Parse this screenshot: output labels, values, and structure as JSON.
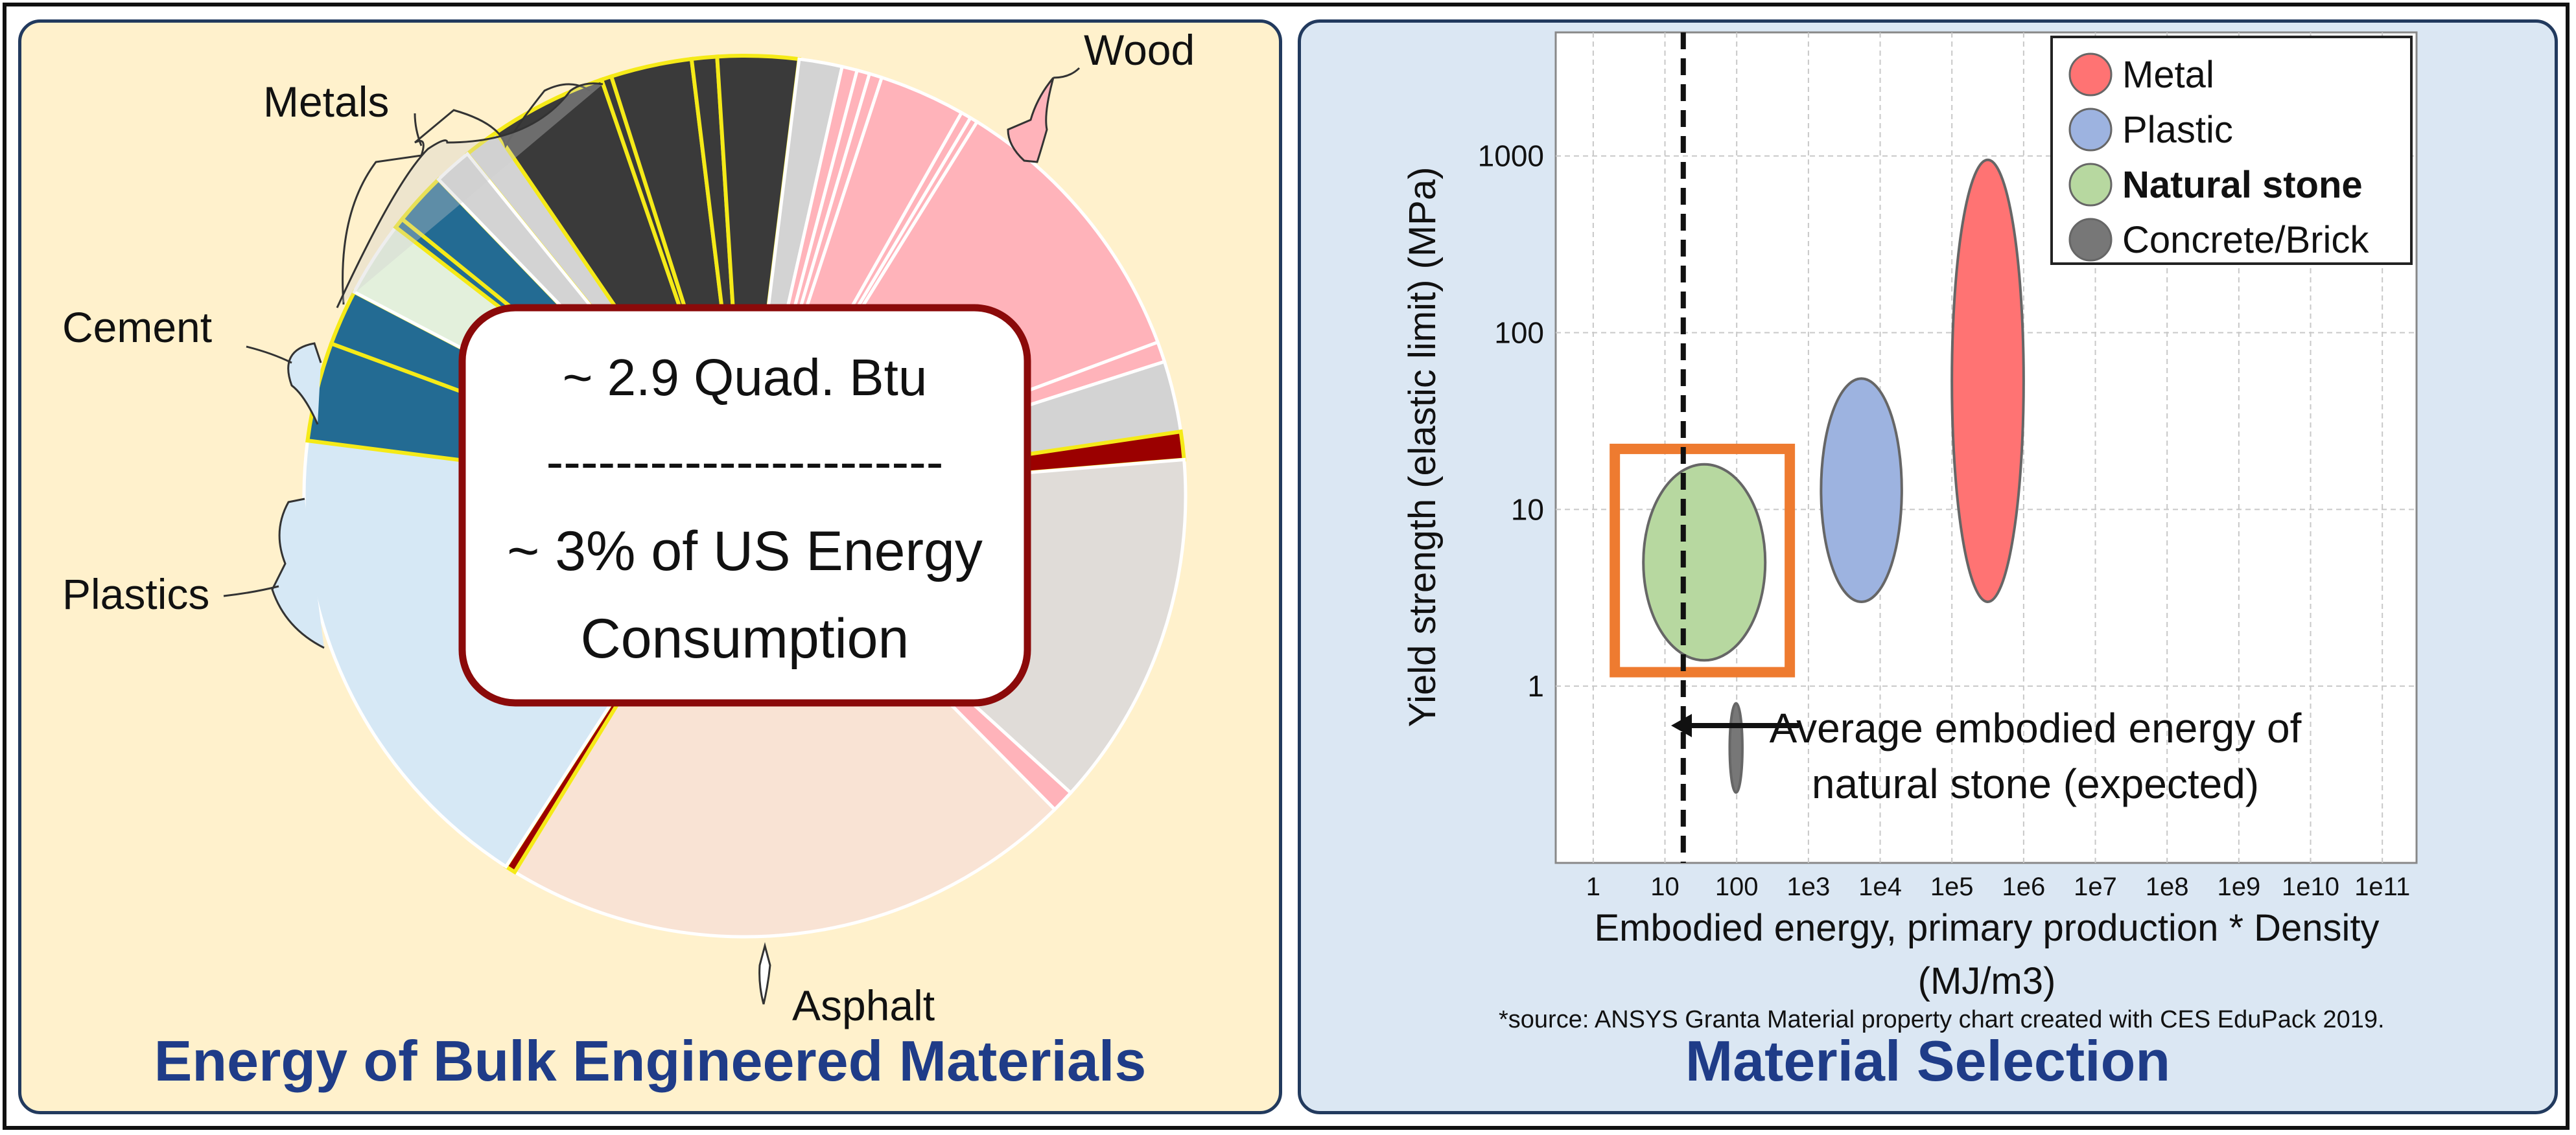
{
  "left_panel": {
    "title": "Energy of Bulk Engineered Materials",
    "callout": {
      "line1": "~ 2.9 Quad. Btu",
      "divider": "-----------------------",
      "line2": "~ 3% of US Energy",
      "line3": "Consumption"
    },
    "labels": {
      "metals": "Metals",
      "wood": "Wood",
      "cement": "Cement",
      "plastics": "Plastics",
      "asphalt": "Asphalt"
    }
  },
  "right_panel": {
    "title": "Material Selection",
    "source": "*source: ANSYS Granta Material property chart created with CES EduPack 2019.",
    "annotation_line1": "Average embodied energy of",
    "annotation_line2": "natural stone (expected)"
  },
  "chart_data": [
    {
      "type": "pie",
      "title": "Energy of Bulk Engineered Materials",
      "highlighted_groups": [
        "Metals",
        "Wood",
        "Cement",
        "Plastics",
        "Asphalt"
      ],
      "slices": [
        {
          "group": "Metals",
          "value": 1.4,
          "color": "#d3d3d3"
        },
        {
          "group": "Metals",
          "value": 4.6,
          "color": "#3a3a3a"
        },
        {
          "group": "Metals",
          "value": 0.4,
          "color": "#3a3a3a"
        },
        {
          "group": "Metals",
          "value": 3.2,
          "color": "#3a3a3a"
        },
        {
          "group": "Metals",
          "value": 1.0,
          "color": "#3a3a3a"
        },
        {
          "group": "Metals",
          "value": 3.2,
          "color": "#3a3a3a"
        },
        {
          "group": "",
          "value": 1.7,
          "color": "#d3d3d3"
        },
        {
          "group": "",
          "value": 0.6,
          "color": "#ffb3ba"
        },
        {
          "group": "",
          "value": 0.5,
          "color": "#ffb3ba"
        },
        {
          "group": "",
          "value": 0.5,
          "color": "#ffb3ba"
        },
        {
          "group": "",
          "value": 3.4,
          "color": "#ffb3ba"
        },
        {
          "group": "",
          "value": 0.4,
          "color": "#ffb3ba"
        },
        {
          "group": "",
          "value": 0.3,
          "color": "#ffb3ba"
        },
        {
          "group": "",
          "value": 11.3,
          "color": "#ffb3ba"
        },
        {
          "group": "",
          "value": 0.8,
          "color": "#ffb3ba"
        },
        {
          "group": "",
          "value": 2.8,
          "color": "#d3d3d3"
        },
        {
          "group": "Wood",
          "value": 1.1,
          "color": "#9b0000"
        },
        {
          "group": "",
          "value": 14.1,
          "color": "#e0dcd8"
        },
        {
          "group": "",
          "value": 0.9,
          "color": "#ffb3ba"
        },
        {
          "group": "",
          "value": 22.8,
          "color": "#f9e3d4"
        },
        {
          "group": "Asphalt",
          "value": 0.4,
          "color": "#9b0000"
        },
        {
          "group": "",
          "value": 19.3,
          "color": "#d6e8f5"
        },
        {
          "group": "Plastics",
          "value": 3.9,
          "color": "#236b93"
        },
        {
          "group": "Plastics",
          "value": 2.2,
          "color": "#236b93"
        },
        {
          "group": "",
          "value": 3.0,
          "color": "#e3f0dc"
        },
        {
          "group": "Cement",
          "value": 0.4,
          "color": "#236b93"
        },
        {
          "group": "Cement",
          "value": 2.1,
          "color": "#236b93"
        },
        {
          "group": "",
          "value": 1.5,
          "color": "#d3d3d3"
        }
      ]
    },
    {
      "type": "scatter",
      "xlabel": "Embodied energy, primary production * Density\n(MJ/m3)",
      "ylabel": "Yield strength (elastic limit) (MPa)",
      "x_scale": "log",
      "y_scale": "log",
      "xlim": [
        0.3,
        300000000000.0
      ],
      "ylim": [
        0.1,
        5000
      ],
      "x_ticks": [
        "1",
        "10",
        "100",
        "1e3",
        "1e4",
        "1e5",
        "1e6",
        "1e7",
        "1e8",
        "1e9",
        "1e10",
        "1e11"
      ],
      "y_ticks": [
        "1",
        "10",
        "100",
        "1000"
      ],
      "grid": true,
      "legend_position": "top-right",
      "series": [
        {
          "name": "Metal",
          "color": "#ff7373",
          "x_range": [
            100000,
            1000000
          ],
          "y_range": [
            3,
            950
          ]
        },
        {
          "name": "Plastic",
          "color": "#9db3e0",
          "x_range": [
            1500,
            20000
          ],
          "y_range": [
            3,
            55
          ]
        },
        {
          "name": "Natural stone",
          "color": "#b7d8a0",
          "x_range": [
            5,
            250
          ],
          "y_range": [
            1.4,
            18
          ]
        },
        {
          "name": "Concrete/Brick",
          "color": "#777777",
          "x_range": [
            80,
            120
          ],
          "y_range": [
            0.25,
            0.8
          ]
        }
      ],
      "highlight_box": {
        "x_range": [
          2,
          550
        ],
        "y_range": [
          1.2,
          22
        ],
        "color": "#ee7b30"
      },
      "reference_line": {
        "x": 18,
        "style": "dashed"
      }
    }
  ]
}
